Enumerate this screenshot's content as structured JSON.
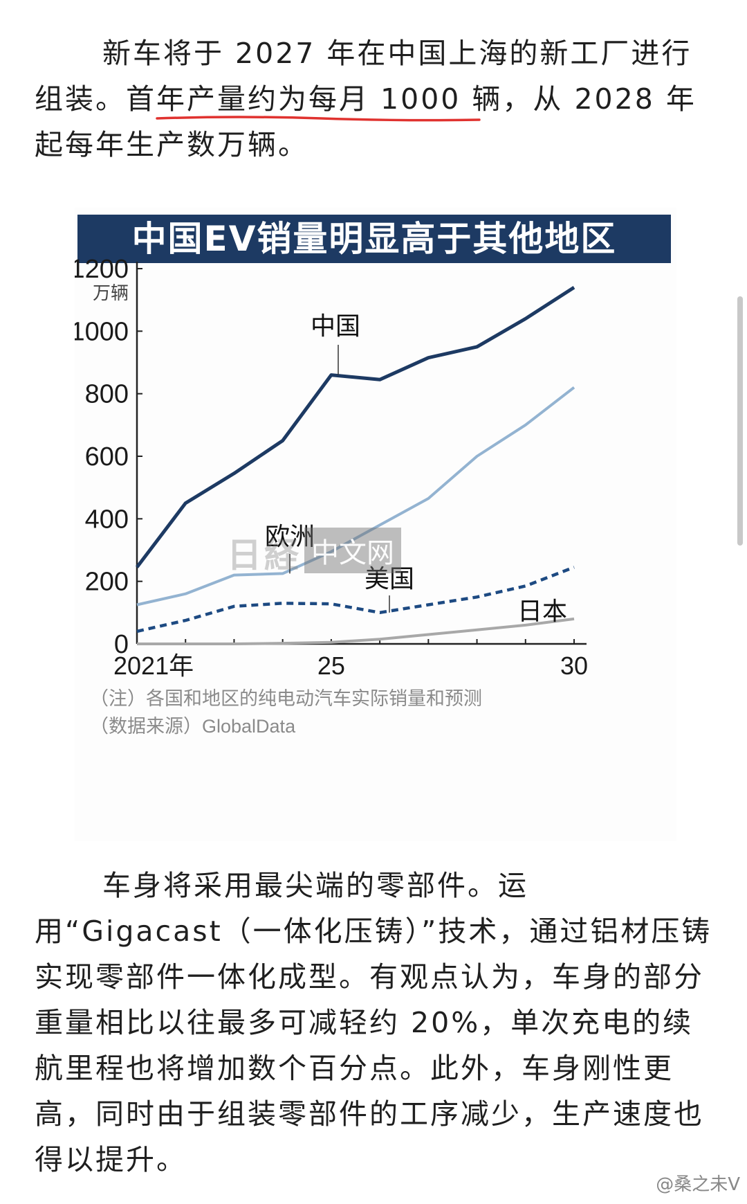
{
  "article": {
    "para1": "新车将于 2027 年在中国上海的新工厂进行组装。首年产量约为每月 1000 辆，从 2028 年起每年生产数万辆。",
    "para2": "车身将采用最尖端的零部件。运用“Gigacast（一体化压铸）”技术，通过铝材压铸实现零部件一体化成型。有观点认为，车身的部分重量相比以往最多可减轻约 20%，单次充电的续航里程也将增加数个百分点。此外，车身刚性更高，同时由于组装零部件的工序减少，生产速度也得以提升。"
  },
  "watermarks": {
    "chart_logo_a": "日経",
    "chart_logo_b": "中文网",
    "weibo": "@桑之未V"
  },
  "colors": {
    "title_bar": "#1d3a63",
    "china": "#1d3a63",
    "europe": "#93b3d1",
    "usa": "#1d4a82",
    "japan": "#a8a8a8",
    "underline": "#e0322f"
  },
  "chart_data": {
    "type": "line",
    "title": "中国EV销量明显高于其他地区",
    "y_unit": "万辆",
    "ylim": [
      0,
      1200
    ],
    "yticks": [
      "0",
      "200",
      "400",
      "600",
      "800",
      "1000",
      "1200"
    ],
    "xlim": [
      2021,
      2030
    ],
    "xticks": [
      {
        "x": 2021,
        "label": "2021年"
      },
      {
        "x": 2025,
        "label": "25"
      },
      {
        "x": 2030,
        "label": "30"
      }
    ],
    "x": [
      2021,
      2022,
      2023,
      2024,
      2025,
      2026,
      2027,
      2028,
      2029,
      2030
    ],
    "series": [
      {
        "name": "中国",
        "style": "solid",
        "values": [
          245,
          450,
          545,
          650,
          860,
          845,
          915,
          950,
          1040,
          1140
        ]
      },
      {
        "name": "欧洲",
        "style": "solid",
        "values": [
          125,
          160,
          220,
          225,
          295,
          380,
          465,
          600,
          700,
          820
        ]
      },
      {
        "name": "美国",
        "style": "dashed",
        "values": [
          40,
          75,
          120,
          130,
          128,
          100,
          125,
          150,
          185,
          245
        ]
      },
      {
        "name": "日本",
        "style": "solid",
        "values": [
          0,
          0,
          0,
          2,
          5,
          15,
          30,
          45,
          60,
          80
        ]
      }
    ],
    "note": "（注）各国和地区的纯电动汽车实际销量和预测",
    "source": "（数据来源）GlobalData",
    "grid": false,
    "legend": "inline labels"
  }
}
